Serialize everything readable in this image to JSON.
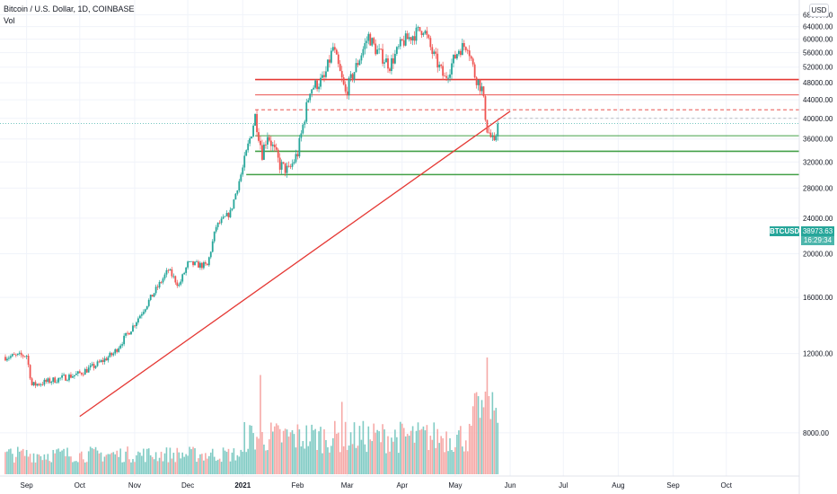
{
  "legend": {
    "title": "Bitcoin / U.S. Dollar, 1D, COINBASE",
    "indicator": "Vol"
  },
  "currency_button": "USD",
  "last_price": {
    "symbol": "BTCUSD",
    "price": "38973.63",
    "countdown": "16:29:34",
    "color": "#26a69a"
  },
  "colors": {
    "up": "#26a69a",
    "down": "#ef5350",
    "vol_up": "#80cbc4",
    "vol_down": "#f6a9a7",
    "resistance": "#e53935",
    "support": "#43a047",
    "grid": "#f0f3fa",
    "axis_text": "#131722"
  },
  "chart_data": {
    "type": "candlestick",
    "title": "Bitcoin / U.S. Dollar, 1D, COINBASE",
    "scale": "log",
    "ylim": [
      6500,
      71000
    ],
    "y_ticks": [
      8000,
      12000,
      16000,
      20000,
      24000,
      28000,
      32000,
      36000,
      40000,
      44000,
      48000,
      52000,
      56000,
      60000,
      64000,
      68000
    ],
    "y_tick_labels": [
      "8000.00",
      "12000.00",
      "16000.00",
      "20000.00",
      "24000.00",
      "28000.00",
      "32000.00",
      "36000.00",
      "40000.00",
      "44000.00",
      "48000.00",
      "52000.00",
      "56000.00",
      "60000.00",
      "64000.00",
      "68000.00"
    ],
    "x_labels": [
      "Sep",
      "Oct",
      "Nov",
      "Dec",
      "2021",
      "Feb",
      "Mar",
      "Apr",
      "May",
      "Jun",
      "Jul",
      "Aug",
      "Sep",
      "Oct"
    ],
    "x_label_dates": [
      "2020-09-01",
      "2020-10-01",
      "2020-11-01",
      "2020-12-01",
      "2021-01-01",
      "2021-02-01",
      "2021-03-01",
      "2021-04-01",
      "2021-05-01",
      "2021-06-01",
      "2021-07-01",
      "2021-08-01",
      "2021-09-01",
      "2021-10-01"
    ],
    "x_range": [
      "2020-08-19",
      "2021-10-27"
    ],
    "price_path": [
      {
        "date": "2020-08-20",
        "close": 11800
      },
      {
        "date": "2020-09-01",
        "close": 11900
      },
      {
        "date": "2020-09-04",
        "close": 10200
      },
      {
        "date": "2020-09-30",
        "close": 10800
      },
      {
        "date": "2020-10-10",
        "close": 11300
      },
      {
        "date": "2020-10-20",
        "close": 12000
      },
      {
        "date": "2020-10-31",
        "close": 13800
      },
      {
        "date": "2020-11-20",
        "close": 18400
      },
      {
        "date": "2020-11-26",
        "close": 17000
      },
      {
        "date": "2020-12-01",
        "close": 19000
      },
      {
        "date": "2020-12-12",
        "close": 18800
      },
      {
        "date": "2020-12-17",
        "close": 23000
      },
      {
        "date": "2020-12-25",
        "close": 24700
      },
      {
        "date": "2021-01-02",
        "close": 32000
      },
      {
        "date": "2021-01-08",
        "close": 40500
      },
      {
        "date": "2021-01-12",
        "close": 33500
      },
      {
        "date": "2021-01-15",
        "close": 37000
      },
      {
        "date": "2021-01-22",
        "close": 31500
      },
      {
        "date": "2021-01-27",
        "close": 30500
      },
      {
        "date": "2021-02-01",
        "close": 33500
      },
      {
        "date": "2021-02-08",
        "close": 46500
      },
      {
        "date": "2021-02-16",
        "close": 49000
      },
      {
        "date": "2021-02-21",
        "close": 57500
      },
      {
        "date": "2021-02-28",
        "close": 45500
      },
      {
        "date": "2021-03-13",
        "close": 61000
      },
      {
        "date": "2021-03-17",
        "close": 57000
      },
      {
        "date": "2021-03-25",
        "close": 52500
      },
      {
        "date": "2021-04-01",
        "close": 59000
      },
      {
        "date": "2021-04-13",
        "close": 63500
      },
      {
        "date": "2021-04-18",
        "close": 56000
      },
      {
        "date": "2021-04-25",
        "close": 49000
      },
      {
        "date": "2021-05-03",
        "close": 57000
      },
      {
        "date": "2021-05-08",
        "close": 58500
      },
      {
        "date": "2021-05-12",
        "close": 50000
      },
      {
        "date": "2021-05-16",
        "close": 46500
      },
      {
        "date": "2021-05-19",
        "close": 38000
      },
      {
        "date": "2021-05-23",
        "close": 34700
      },
      {
        "date": "2021-05-25",
        "close": 38973.63
      }
    ],
    "last_price": 38973.63,
    "horizontal_levels": [
      {
        "price": 48800,
        "color": "#e53935",
        "style": "solid-thick",
        "from": "2021-01-08"
      },
      {
        "price": 45100,
        "color": "#e53935",
        "style": "solid-thin",
        "from": "2021-01-08"
      },
      {
        "price": 41800,
        "color": "#e53935",
        "style": "dashed",
        "from": "2021-01-08"
      },
      {
        "price": 36600,
        "color": "#43a047",
        "style": "solid-thin",
        "from": "2021-01-08"
      },
      {
        "price": 33800,
        "color": "#43a047",
        "style": "solid-thick",
        "from": "2021-01-08"
      },
      {
        "price": 30000,
        "color": "#43a047",
        "style": "solid-thick",
        "from": "2021-01-03"
      }
    ],
    "trendline": {
      "from": {
        "date": "2020-10-01",
        "price": 8700
      },
      "to": {
        "date": "2021-06-01",
        "price": 41500
      },
      "color": "#e53935"
    },
    "volume_spikes": [
      {
        "date": "2021-01-11",
        "relative": 0.85
      },
      {
        "date": "2021-02-26",
        "relative": 0.62
      },
      {
        "date": "2021-05-19",
        "relative": 1.0
      }
    ]
  }
}
